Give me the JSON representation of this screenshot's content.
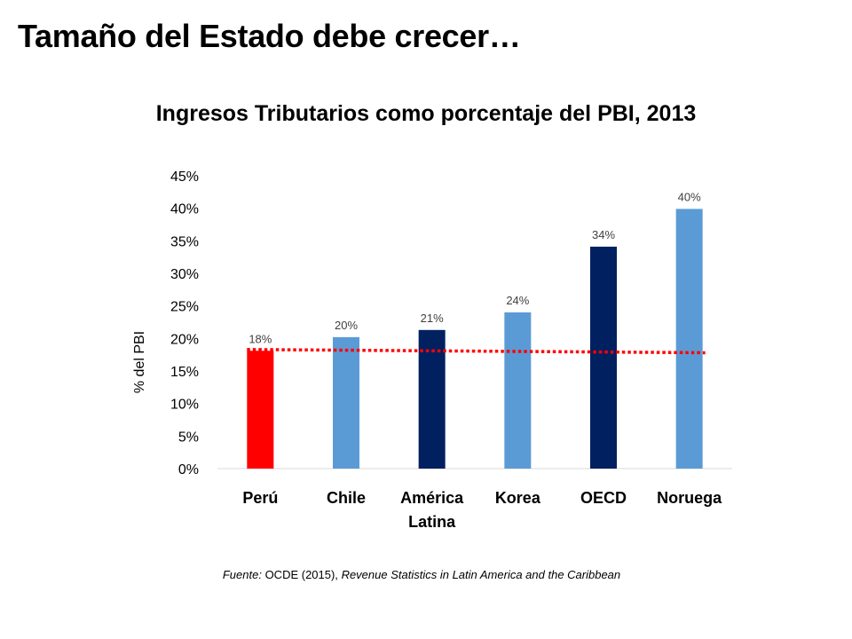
{
  "slide": {
    "title": "Tamaño del Estado debe crecer…"
  },
  "source": {
    "label": "Fuente:",
    "author": "OCDE (2015),",
    "publication": "Revenue Statistics in Latin America and the Caribbean"
  },
  "chart_data": {
    "type": "bar",
    "title": "Ingresos Tributarios como porcentaje del PBI, 2013",
    "xlabel": "",
    "ylabel": "% del PBI",
    "categories": [
      [
        "Perú"
      ],
      [
        "Chile"
      ],
      [
        "América",
        "Latina"
      ],
      [
        "Korea"
      ],
      [
        "OECD"
      ],
      [
        "Noruega"
      ]
    ],
    "values": [
      18.1,
      20.2,
      21.3,
      24.0,
      34.1,
      39.9
    ],
    "data_labels": [
      "18%",
      "20%",
      "21%",
      "24%",
      "34%",
      "40%"
    ],
    "bar_colors": [
      "#ff0000",
      "#5b9bd5",
      "#002060",
      "#5b9bd5",
      "#002060",
      "#5b9bd5"
    ],
    "ylim": [
      0,
      45
    ],
    "yticks": [
      "0%",
      "5%",
      "10%",
      "15%",
      "20%",
      "25%",
      "30%",
      "35%",
      "40%",
      "45%"
    ],
    "ytick_values": [
      0,
      5,
      10,
      15,
      20,
      25,
      30,
      35,
      40,
      45
    ],
    "reference_line": {
      "style": "dotted",
      "color": "#ff0000",
      "y_start": 18.3,
      "y_end": 17.8
    },
    "grid": false,
    "legend": "none"
  }
}
